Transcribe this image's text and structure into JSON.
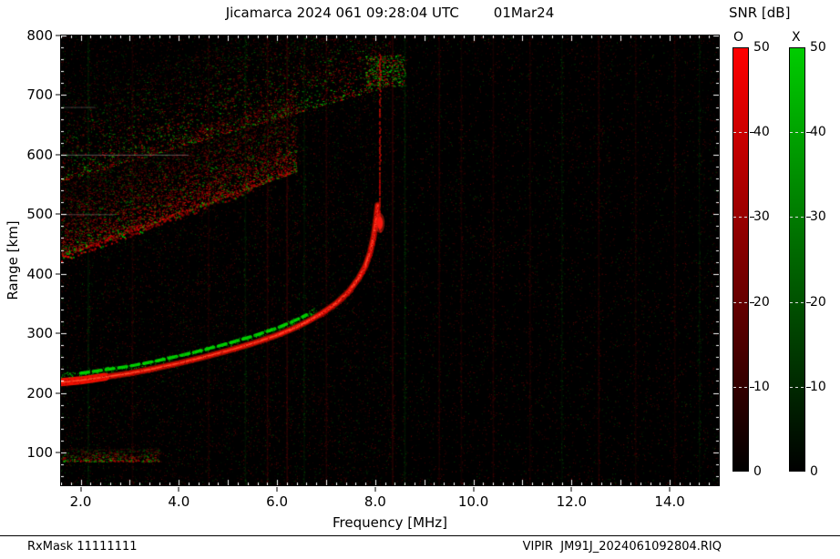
{
  "title": {
    "main": "Jicamarca 2024 061 09:28:04 UTC",
    "date": "01Mar24"
  },
  "axes": {
    "xlabel": "Frequency [MHz]",
    "ylabel": "Range [km]"
  },
  "footer": {
    "left": "RxMask 11111111",
    "right": "VIPIR  JM91J_2024061092804.RIQ"
  },
  "colorbar": {
    "title": "SNR [dB]",
    "o": {
      "label": "O",
      "color": "#ff0000"
    },
    "x": {
      "label": "X",
      "color": "#00cc00"
    },
    "min": 0,
    "max": 50,
    "ticks": [
      0,
      10,
      20,
      30,
      40,
      50
    ]
  },
  "chart_data": {
    "type": "heatmap",
    "title": "Jicamarca 2024 061 09:28:04 UTC 01Mar24",
    "xlabel": "Frequency [MHz]",
    "ylabel": "Range [km]",
    "xlim": [
      1.6,
      15.0
    ],
    "ylim": [
      45,
      800
    ],
    "xticks": [
      2.0,
      4.0,
      6.0,
      8.0,
      10.0,
      12.0,
      14.0
    ],
    "yticks": [
      100,
      200,
      300,
      400,
      500,
      600,
      700,
      800
    ],
    "x_minor_step": 0.2,
    "y_minor_step": 20,
    "snr_range_db": [
      0,
      50
    ],
    "critical_frequency_o_mhz": 8.1,
    "trace_o_f_mhz_vs_range_km": [
      [
        1.6,
        218
      ],
      [
        2.0,
        221
      ],
      [
        2.5,
        227
      ],
      [
        3.0,
        233
      ],
      [
        3.5,
        241
      ],
      [
        4.0,
        250
      ],
      [
        4.5,
        260
      ],
      [
        5.0,
        271
      ],
      [
        5.5,
        283
      ],
      [
        6.0,
        297
      ],
      [
        6.3,
        307
      ],
      [
        6.6,
        319
      ],
      [
        6.9,
        333
      ],
      [
        7.2,
        350
      ],
      [
        7.45,
        369
      ],
      [
        7.65,
        391
      ],
      [
        7.8,
        413
      ],
      [
        7.9,
        437
      ],
      [
        7.97,
        463
      ],
      [
        8.02,
        492
      ],
      [
        8.05,
        515
      ]
    ],
    "trace_x_offset_km": 12,
    "vertical_echo": {
      "f_mhz": 8.08,
      "range_km": [
        470,
        772
      ],
      "blob_range_km": 485
    },
    "spread_f_bands": [
      {
        "f_mhz": [
          1.6,
          6.4
        ],
        "range_at_start_km": 428,
        "slope_km_per_mhz": 30,
        "thickness_km": 135,
        "density": 1.0,
        "green_fraction": 0.22,
        "leading_edge": true
      },
      {
        "f_mhz": [
          1.6,
          8.3
        ],
        "range_at_start_km": 555,
        "slope_km_per_mhz": 24,
        "thickness_km": 150,
        "density": 0.55,
        "green_fraction": 0.38,
        "leading_edge": false
      },
      {
        "f_mhz": [
          1.6,
          3.6
        ],
        "range_at_start_km": 85,
        "slope_km_per_mhz": 0,
        "thickness_km": 22,
        "density": 0.12,
        "green_fraction": 0.35,
        "leading_edge": false
      }
    ],
    "top_patch": {
      "f_mhz": [
        7.8,
        8.6
      ],
      "range_km": [
        715,
        768
      ]
    },
    "rfi_columns": [
      {
        "f": 2.15,
        "color": "green",
        "alpha": 0.1
      },
      {
        "f": 3.05,
        "color": "red",
        "alpha": 0.08
      },
      {
        "f": 4.6,
        "color": "red",
        "alpha": 0.07
      },
      {
        "f": 5.35,
        "color": "green",
        "alpha": 0.08
      },
      {
        "f": 5.8,
        "color": "red",
        "alpha": 0.12
      },
      {
        "f": 6.2,
        "color": "red",
        "alpha": 0.16
      },
      {
        "f": 6.55,
        "color": "green",
        "alpha": 0.08
      },
      {
        "f": 7.0,
        "color": "red",
        "alpha": 0.1
      },
      {
        "f": 8.35,
        "color": "red",
        "alpha": 0.16
      },
      {
        "f": 8.6,
        "color": "green",
        "alpha": 0.1
      },
      {
        "f": 9.3,
        "color": "red",
        "alpha": 0.1
      },
      {
        "f": 9.75,
        "color": "red",
        "alpha": 0.07
      },
      {
        "f": 10.4,
        "color": "red",
        "alpha": 0.09
      },
      {
        "f": 11.15,
        "color": "red",
        "alpha": 0.07
      },
      {
        "f": 11.8,
        "color": "green",
        "alpha": 0.06
      },
      {
        "f": 12.55,
        "color": "red",
        "alpha": 0.1
      },
      {
        "f": 13.3,
        "color": "red",
        "alpha": 0.07
      },
      {
        "f": 14.1,
        "color": "red",
        "alpha": 0.08
      },
      {
        "f": 14.6,
        "color": "green",
        "alpha": 0.06
      }
    ],
    "interference_rows": [
      {
        "range_km": 600,
        "f_mhz": [
          1.6,
          4.2
        ],
        "alpha": 0.45
      },
      {
        "range_km": 500,
        "f_mhz": [
          1.6,
          2.7
        ],
        "alpha": 0.35
      },
      {
        "range_km": 680,
        "f_mhz": [
          1.6,
          2.3
        ],
        "alpha": 0.3
      }
    ],
    "noise": {
      "points": 26000,
      "red_fraction": 0.72,
      "seed": 42
    }
  }
}
